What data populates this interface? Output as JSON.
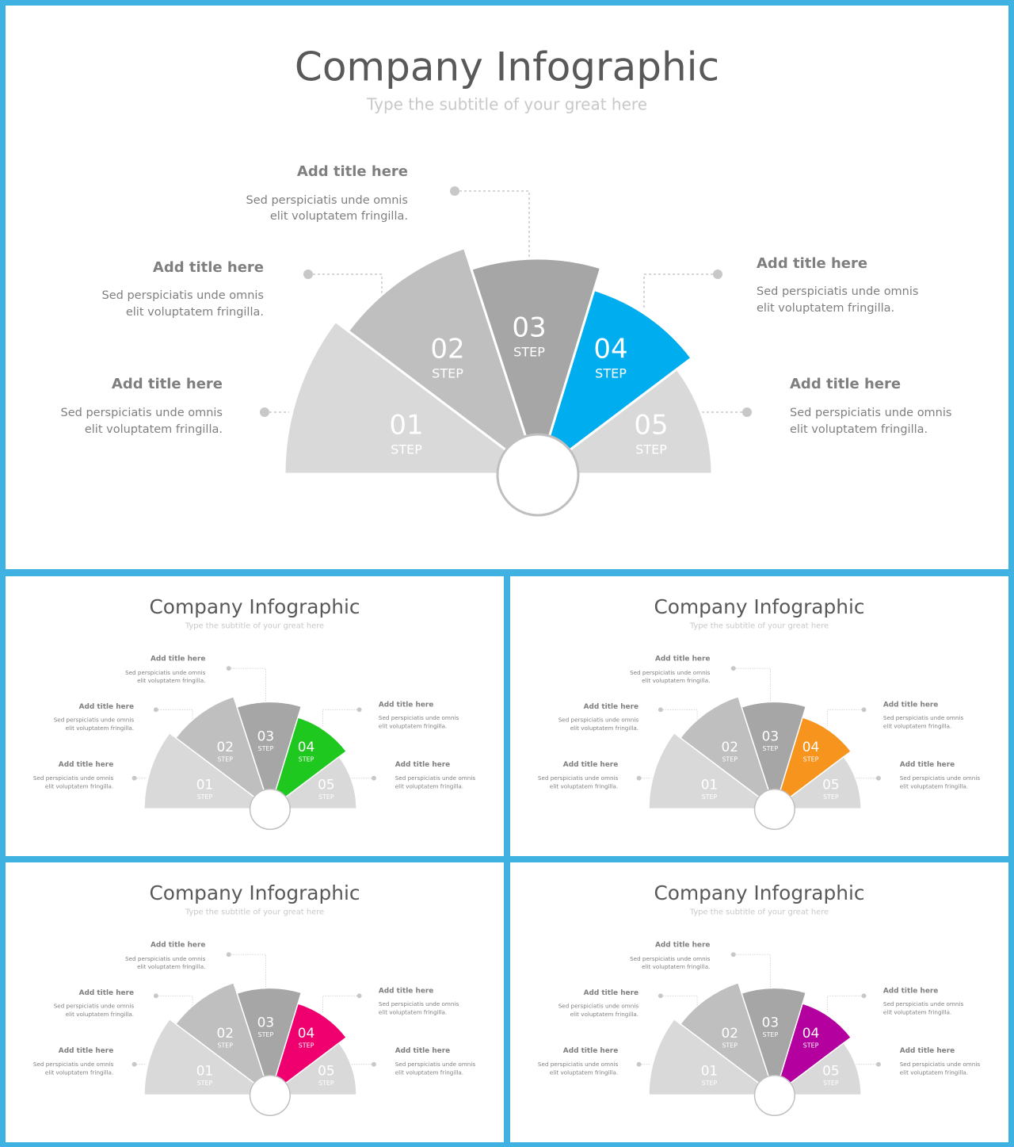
{
  "slides": [
    {
      "title": "Company Infographic",
      "subtitle": "Type the subtitle of your great here",
      "accent": "#00adef",
      "steps": [
        {
          "number": "01",
          "label": "STEP",
          "title": "Add title here",
          "text": [
            "Sed perspiciatis unde omnis",
            "elit voluptatem fringilla."
          ]
        },
        {
          "number": "02",
          "label": "STEP",
          "title": "Add title here",
          "text": [
            "Sed perspiciatis unde omnis",
            "elit voluptatem fringilla."
          ]
        },
        {
          "number": "03",
          "label": "STEP",
          "title": "Add title here",
          "text": [
            "Sed perspiciatis unde omnis",
            "elit voluptatem fringilla."
          ]
        },
        {
          "number": "04",
          "label": "STEP",
          "title": "Add title here",
          "text": [
            "Sed perspiciatis unde omnis",
            "elit voluptatem fringilla."
          ]
        },
        {
          "number": "05",
          "label": "STEP",
          "title": "Add title here",
          "text": [
            "Sed perspiciatis unde omnis",
            "elit voluptatem fringilla."
          ]
        }
      ]
    },
    {
      "title": "Company Infographic",
      "subtitle": "Type the subtitle of your great here",
      "accent": "#1ec81e",
      "steps": [
        {
          "number": "01",
          "label": "STEP",
          "title": "Add title here",
          "text": [
            "Sed perspiciatis unde omnis",
            "elit voluptatem fringilla."
          ]
        },
        {
          "number": "02",
          "label": "STEP",
          "title": "Add title here",
          "text": [
            "Sed perspiciatis unde omnis",
            "elit voluptatem fringilla."
          ]
        },
        {
          "number": "03",
          "label": "STEP",
          "title": "Add title here",
          "text": [
            "Sed perspiciatis unde omnis",
            "elit voluptatem fringilla."
          ]
        },
        {
          "number": "04",
          "label": "STEP",
          "title": "Add title here",
          "text": [
            "Sed perspiciatis unde omnis",
            "elit voluptatem fringilla."
          ]
        },
        {
          "number": "05",
          "label": "STEP",
          "title": "Add title here",
          "text": [
            "Sed perspiciatis unde omnis",
            "elit voluptatem fringilla."
          ]
        }
      ]
    },
    {
      "title": "Company Infographic",
      "subtitle": "Type the subtitle of your great here",
      "accent": "#f7941d",
      "steps": [
        {
          "number": "01",
          "label": "STEP",
          "title": "Add title here",
          "text": [
            "Sed perspiciatis unde omnis",
            "elit voluptatem fringilla."
          ]
        },
        {
          "number": "02",
          "label": "STEP",
          "title": "Add title here",
          "text": [
            "Sed perspiciatis unde omnis",
            "elit voluptatem fringilla."
          ]
        },
        {
          "number": "03",
          "label": "STEP",
          "title": "Add title here",
          "text": [
            "Sed perspiciatis unde omnis",
            "elit voluptatem fringilla."
          ]
        },
        {
          "number": "04",
          "label": "STEP",
          "title": "Add title here",
          "text": [
            "Sed perspiciatis unde omnis",
            "elit voluptatem fringilla."
          ]
        },
        {
          "number": "05",
          "label": "STEP",
          "title": "Add title here",
          "text": [
            "Sed perspiciatis unde omnis",
            "elit voluptatem fringilla."
          ]
        }
      ]
    },
    {
      "title": "Company Infographic",
      "subtitle": "Type the subtitle of your great here",
      "accent": "#f0006e",
      "steps": [
        {
          "number": "01",
          "label": "STEP",
          "title": "Add title here",
          "text": [
            "Sed perspiciatis unde omnis",
            "elit voluptatem fringilla."
          ]
        },
        {
          "number": "02",
          "label": "STEP",
          "title": "Add title here",
          "text": [
            "Sed perspiciatis unde omnis",
            "elit voluptatem fringilla."
          ]
        },
        {
          "number": "03",
          "label": "STEP",
          "title": "Add title here",
          "text": [
            "Sed perspiciatis unde omnis",
            "elit voluptatem fringilla."
          ]
        },
        {
          "number": "04",
          "label": "STEP",
          "title": "Add title here",
          "text": [
            "Sed perspiciatis unde omnis",
            "elit voluptatem fringilla."
          ]
        },
        {
          "number": "05",
          "label": "STEP",
          "title": "Add title here",
          "text": [
            "Sed perspiciatis unde omnis",
            "elit voluptatem fringilla."
          ]
        }
      ]
    },
    {
      "title": "Company Infographic",
      "subtitle": "Type the subtitle of your great here",
      "accent": "#b4009e",
      "steps": [
        {
          "number": "01",
          "label": "STEP",
          "title": "Add title here",
          "text": [
            "Sed perspiciatis unde omnis",
            "elit voluptatem fringilla."
          ]
        },
        {
          "number": "02",
          "label": "STEP",
          "title": "Add title here",
          "text": [
            "Sed perspiciatis unde omnis",
            "elit voluptatem fringilla."
          ]
        },
        {
          "number": "03",
          "label": "STEP",
          "title": "Add title here",
          "text": [
            "Sed perspiciatis unde omnis",
            "elit voluptatem fringilla."
          ]
        },
        {
          "number": "04",
          "label": "STEP",
          "title": "Add title here",
          "text": [
            "Sed perspiciatis unde omnis",
            "elit voluptatem fringilla."
          ]
        },
        {
          "number": "05",
          "label": "STEP",
          "title": "Add title here",
          "text": [
            "Sed perspiciatis unde omnis",
            "elit voluptatem fringilla."
          ]
        }
      ]
    }
  ]
}
